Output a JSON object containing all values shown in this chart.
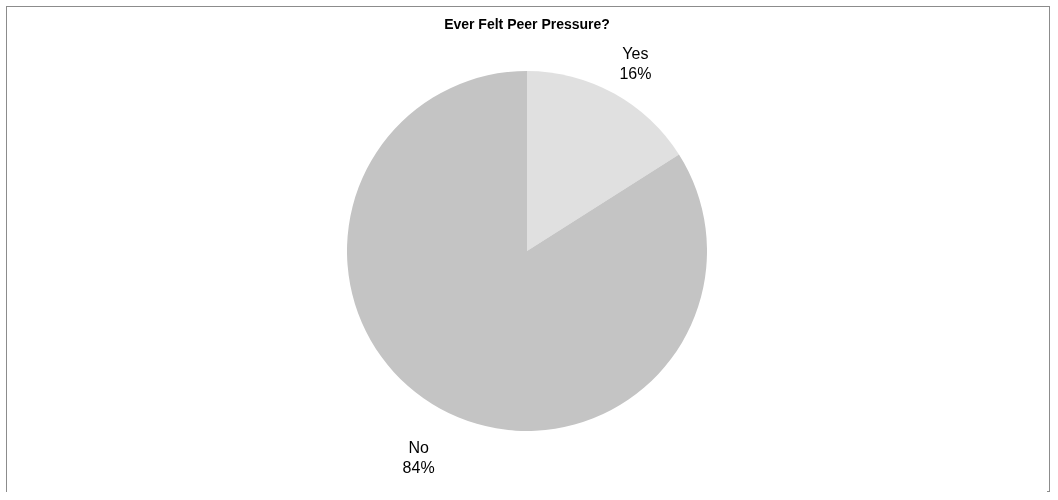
{
  "chart_data": {
    "type": "pie",
    "title": "Ever Felt Peer Pressure?",
    "categories": [
      "Yes",
      "No"
    ],
    "values": [
      16,
      84
    ],
    "value_labels": [
      "16%",
      "84%"
    ],
    "colors": [
      "#e0e0e0",
      "#c4c4c4"
    ],
    "legend": false
  }
}
